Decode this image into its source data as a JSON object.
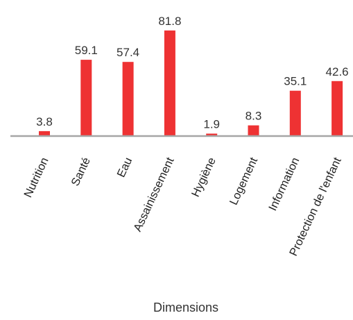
{
  "chart_data": {
    "type": "bar",
    "categories": [
      "Nutrition",
      "Santé",
      "Eau",
      "Assainissement",
      "Hygiène",
      "Logement",
      "Information",
      "Protection de l'enfant"
    ],
    "values": [
      3.8,
      59.1,
      57.4,
      81.8,
      1.9,
      8.3,
      35.1,
      42.6
    ],
    "value_labels": [
      "3.8",
      "59.1",
      "57.4",
      "81.8",
      "1.9",
      "8.3",
      "35.1",
      "42.6"
    ],
    "xlabel": "Dimensions",
    "ylabel": "",
    "ylim": [
      0,
      100
    ],
    "grid": false,
    "legend": "none",
    "colors": {
      "bar": "#ee3233",
      "axis": "#a6a6a6"
    }
  }
}
